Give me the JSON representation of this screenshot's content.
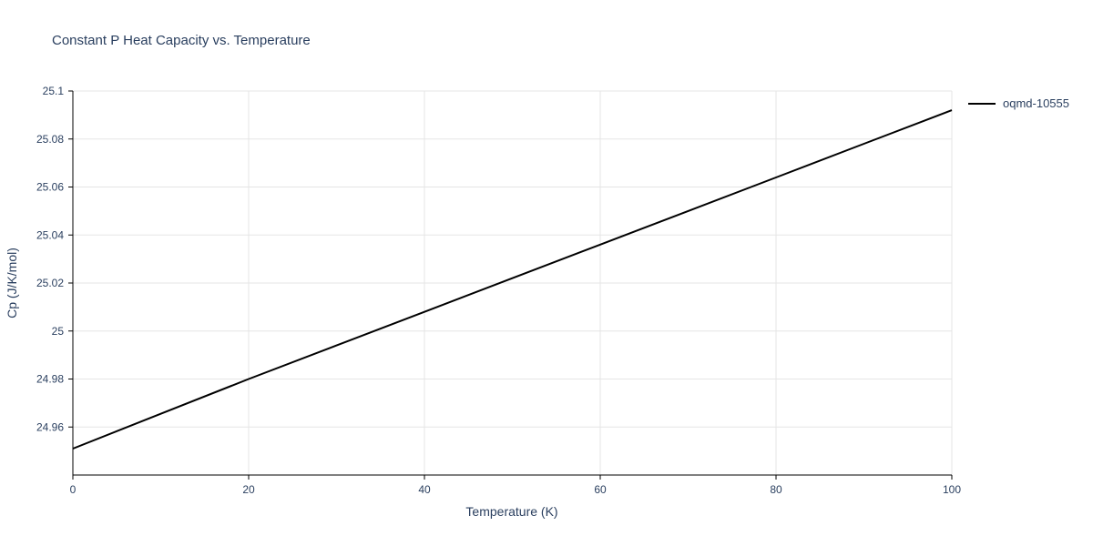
{
  "page": {
    "title": "Constant P Heat Capacity vs. Temperature"
  },
  "chart_data": {
    "type": "line",
    "title": "Constant P Heat Capacity vs. Temperature",
    "xlabel": "Temperature (K)",
    "ylabel": "Cp (J/K/mol)",
    "xlim": [
      0,
      100
    ],
    "ylim": [
      24.94,
      25.1
    ],
    "x_ticks": [
      0,
      20,
      40,
      60,
      80,
      100
    ],
    "x_tick_labels": [
      "0",
      "20",
      "40",
      "60",
      "80",
      "100"
    ],
    "y_ticks": [
      24.96,
      24.98,
      25,
      25.02,
      25.04,
      25.06,
      25.08,
      25.1
    ],
    "y_tick_labels": [
      "24.96",
      "24.98",
      "25",
      "25.02",
      "25.04",
      "25.06",
      "25.08",
      "25.1"
    ],
    "grid": true,
    "legend": {
      "position": "top-right-outside",
      "entries": [
        "oqmd-10555"
      ]
    },
    "series": [
      {
        "name": "oqmd-10555",
        "color": "#000000",
        "x": [
          0,
          10,
          20,
          30,
          40,
          50,
          60,
          70,
          80,
          90,
          100
        ],
        "y": [
          24.951,
          24.9655,
          24.98,
          24.994,
          25.008,
          25.022,
          25.036,
          25.05,
          25.064,
          25.078,
          25.092
        ]
      }
    ],
    "colors": {
      "title": "#2a3f5f",
      "tick_labels": "#2a3f5f",
      "axis_line": "#000000",
      "grid": "#e5e5e5",
      "background": "#ffffff"
    }
  }
}
